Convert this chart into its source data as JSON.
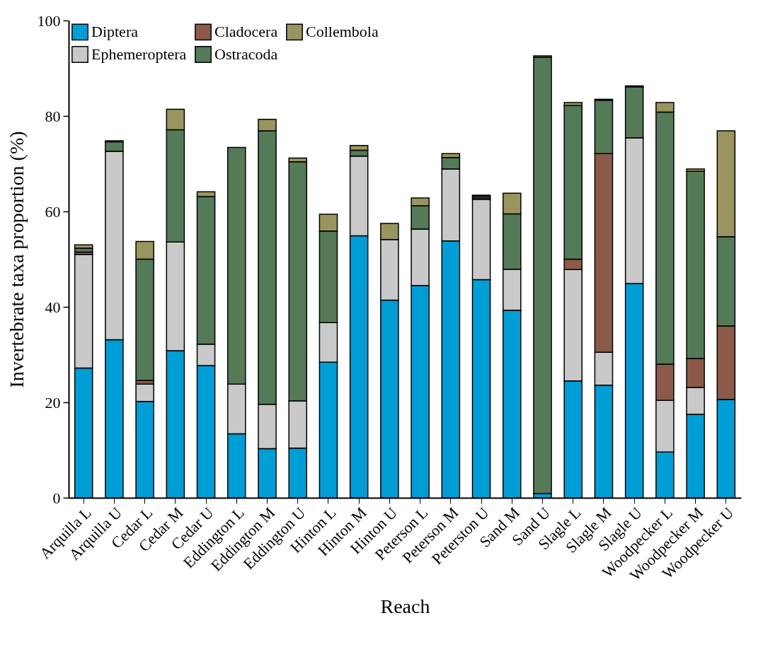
{
  "chart_data": {
    "type": "bar",
    "stacked": true,
    "xlabel": "Reach",
    "ylabel": "Invertebrate taxa proportion (%)",
    "ylim": [
      0,
      100
    ],
    "yticks": [
      0,
      20,
      40,
      60,
      80,
      100
    ],
    "grid": false,
    "legend": "top left",
    "categories": [
      "Arquilla L",
      "Arquilla U",
      "Cedar L",
      "Cedar M",
      "Cedar U",
      "Eddington L",
      "Eddington M",
      "Eddington U",
      "Hinton L",
      "Hinton M",
      "Hinton U",
      "Peterson L",
      "Peterson M",
      "Peterston U",
      "Sand M",
      "Sand U",
      "Slagle L",
      "Slagle M",
      "Slagle U",
      "Woodpecker L",
      "Woodpecker M",
      "Woodpecker U"
    ],
    "series": [
      {
        "name": "Diptera",
        "color": "#009ed6",
        "values": [
          27.2,
          33.1,
          20.2,
          30.8,
          27.7,
          13.4,
          10.3,
          10.4,
          28.4,
          54.9,
          41.4,
          44.5,
          53.8,
          45.7,
          39.3,
          0.9,
          24.5,
          23.6,
          44.9,
          9.6,
          17.5,
          20.6
        ]
      },
      {
        "name": "Ephemeroptera",
        "color": "#c9c9c9",
        "values": [
          23.8,
          39.5,
          3.6,
          22.8,
          4.5,
          10.4,
          9.3,
          9.9,
          8.3,
          16.7,
          12.7,
          11.8,
          15.1,
          16.8,
          8.6,
          null,
          23.3,
          6.9,
          30.5,
          10.8,
          5.6,
          null
        ]
      },
      {
        "name": "Cladocera",
        "color": "#8b5a4a",
        "values": [
          0.5,
          null,
          0.8,
          null,
          null,
          null,
          null,
          null,
          null,
          null,
          null,
          null,
          null,
          0.3,
          null,
          null,
          2.2,
          41.6,
          null,
          7.6,
          6.1,
          15.4
        ]
      },
      {
        "name": "Ostracoda",
        "color": "#557a58",
        "values": [
          0.8,
          2.0,
          25.4,
          23.5,
          30.9,
          49.6,
          57.3,
          50.1,
          19.2,
          1.2,
          null,
          4.9,
          2.4,
          0.4,
          11.6,
          91.4,
          32.2,
          11.2,
          10.7,
          52.8,
          39.2,
          18.7
        ]
      },
      {
        "name": "Collembola",
        "color": "#9a955e",
        "values": [
          0.7,
          0.2,
          3.7,
          4.3,
          1.0,
          null,
          2.4,
          0.8,
          3.5,
          1.0,
          3.4,
          1.6,
          0.8,
          0.2,
          4.3,
          0.3,
          0.6,
          0.2,
          0.2,
          2.0,
          0.5,
          22.2
        ]
      }
    ]
  }
}
